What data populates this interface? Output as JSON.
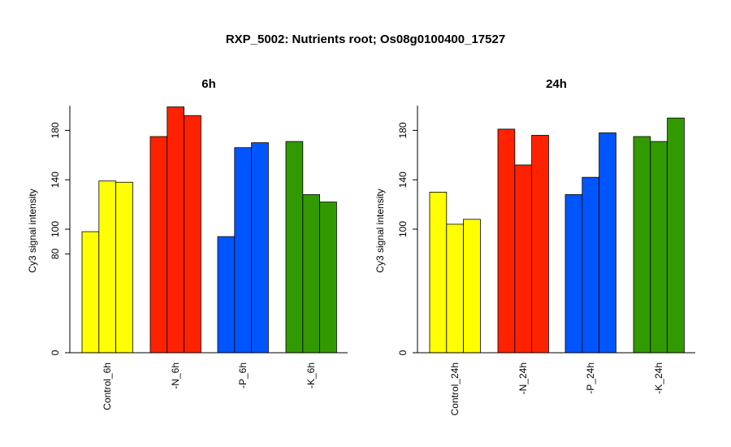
{
  "main_title": "RXP_5002: Nutrients root; Os08g0100400_17527",
  "chart_data": [
    {
      "type": "bar",
      "title": "6h",
      "ylabel": "Cy3 signal intensity",
      "xlabel": "",
      "ylim": [
        0,
        200
      ],
      "yticks": [
        0,
        80,
        100,
        140,
        180
      ],
      "groups": [
        {
          "label": "Control_6h",
          "color": "#ffff00",
          "values": [
            98,
            139,
            138
          ]
        },
        {
          "label": "-N_6h",
          "color": "#ff2200",
          "values": [
            175,
            199,
            192
          ]
        },
        {
          "label": "-P_6h",
          "color": "#0055ff",
          "values": [
            94,
            166,
            170
          ]
        },
        {
          "label": "-K_6h",
          "color": "#339900",
          "values": [
            171,
            128,
            122
          ]
        }
      ]
    },
    {
      "type": "bar",
      "title": "24h",
      "ylabel": "Cy3 signal intensity",
      "xlabel": "",
      "ylim": [
        0,
        200
      ],
      "yticks": [
        0,
        100,
        140,
        180
      ],
      "groups": [
        {
          "label": "Control_24h",
          "color": "#ffff00",
          "values": [
            130,
            104,
            108
          ]
        },
        {
          "label": "-N_24h",
          "color": "#ff2200",
          "values": [
            181,
            152,
            176
          ]
        },
        {
          "label": "-P_24h",
          "color": "#0055ff",
          "values": [
            128,
            142,
            178
          ]
        },
        {
          "label": "-K_24h",
          "color": "#339900",
          "values": [
            175,
            171,
            190
          ]
        }
      ]
    }
  ]
}
